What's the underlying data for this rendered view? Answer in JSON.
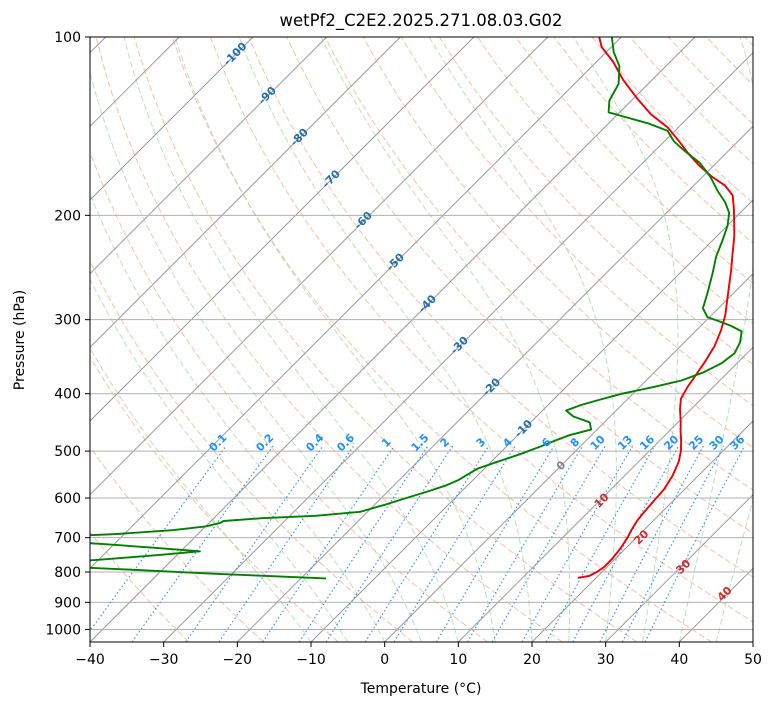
{
  "chart_data": {
    "type": "line",
    "title": "wetPf2_C2E2.2025.271.08.03.G02",
    "xlabel": "Temperature (°C)",
    "ylabel": "Pressure (hPa)",
    "xlim": [
      -40,
      50
    ],
    "ylim": [
      1050,
      100
    ],
    "y_scale": "log",
    "grid": true,
    "x_ticks": [
      -40,
      -30,
      -20,
      -10,
      0,
      10,
      20,
      30,
      40,
      50
    ],
    "y_ticks": [
      100,
      200,
      300,
      400,
      500,
      600,
      700,
      800,
      900,
      1000
    ],
    "skew": 45,
    "series": [
      {
        "color": "#ee0000",
        "points": [
          [
            17.5,
            818
          ],
          [
            18.8,
            812
          ],
          [
            19.3,
            800
          ],
          [
            19.6,
            785
          ],
          [
            19.6,
            760
          ],
          [
            19.3,
            730
          ],
          [
            18.8,
            700
          ],
          [
            18.3,
            680
          ],
          [
            17.8,
            655
          ],
          [
            17.6,
            635
          ],
          [
            17.4,
            610
          ],
          [
            17.2,
            580
          ],
          [
            16.5,
            550
          ],
          [
            15.4,
            520
          ],
          [
            14.3,
            500
          ],
          [
            12.9,
            480
          ],
          [
            11.5,
            462
          ],
          [
            10.2,
            445
          ],
          [
            8.5,
            425
          ],
          [
            7.2,
            408
          ],
          [
            6.5,
            390
          ],
          [
            6.0,
            372
          ],
          [
            5.4,
            352
          ],
          [
            4.6,
            332
          ],
          [
            3.3,
            312
          ],
          [
            1.9,
            295
          ],
          [
            0.2,
            279
          ],
          [
            -1.6,
            263
          ],
          [
            -3.5,
            247
          ],
          [
            -5.5,
            232
          ],
          [
            -7.6,
            217
          ],
          [
            -9.6,
            205
          ],
          [
            -11.4,
            195
          ],
          [
            -13.4,
            185
          ],
          [
            -15.8,
            178
          ],
          [
            -18.8,
            172
          ],
          [
            -21.9,
            165
          ],
          [
            -24.8,
            158
          ],
          [
            -28.0,
            150
          ],
          [
            -31.5,
            142
          ],
          [
            -35.5,
            135
          ],
          [
            -39.5,
            127
          ],
          [
            -44.0,
            118
          ],
          [
            -47.8,
            110
          ],
          [
            -51.3,
            104
          ],
          [
            -53.0,
            100
          ]
        ]
      },
      {
        "color": "#008000",
        "points": [
          [
            -16.6,
            820
          ],
          [
            -25.0,
            812
          ],
          [
            -33.0,
            805
          ],
          [
            -42.0,
            795
          ],
          [
            -52.0,
            785
          ],
          [
            -58.8,
            775
          ],
          [
            -50.0,
            763
          ],
          [
            -42.0,
            748
          ],
          [
            -37.4,
            738
          ],
          [
            -44.0,
            728
          ],
          [
            -52.0,
            717
          ],
          [
            -60.0,
            708
          ],
          [
            -62.0,
            700
          ],
          [
            -51.0,
            690
          ],
          [
            -44.0,
            680
          ],
          [
            -40.0,
            670
          ],
          [
            -38.5,
            661
          ],
          [
            -38.3,
            656
          ],
          [
            -33.5,
            649
          ],
          [
            -26.5,
            643
          ],
          [
            -21.0,
            633
          ],
          [
            -18.5,
            615
          ],
          [
            -16.6,
            600
          ],
          [
            -14.6,
            585
          ],
          [
            -13.0,
            572
          ],
          [
            -12.0,
            560
          ],
          [
            -11.5,
            548
          ],
          [
            -10.9,
            535
          ],
          [
            -9.0,
            520
          ],
          [
            -7.0,
            505
          ],
          [
            -5.5,
            492
          ],
          [
            -4.2,
            480
          ],
          [
            -3.0,
            470
          ],
          [
            -0.8,
            460
          ],
          [
            -2.0,
            447
          ],
          [
            -5.0,
            437
          ],
          [
            -6.8,
            427
          ],
          [
            -5.5,
            418
          ],
          [
            -3.8,
            410
          ],
          [
            -1.5,
            400
          ],
          [
            1.8,
            390
          ],
          [
            4.8,
            380
          ],
          [
            6.7,
            368
          ],
          [
            7.9,
            355
          ],
          [
            8.3,
            342
          ],
          [
            7.6,
            328
          ],
          [
            6.3,
            314
          ],
          [
            4.0,
            307
          ],
          [
            1.9,
            302
          ],
          [
            -0.3,
            297
          ],
          [
            -2.1,
            287
          ],
          [
            -3.6,
            270
          ],
          [
            -5.6,
            250
          ],
          [
            -7.3,
            235
          ],
          [
            -8.7,
            220
          ],
          [
            -10.0,
            208
          ],
          [
            -11.5,
            198
          ],
          [
            -13.5,
            190
          ],
          [
            -16.0,
            182
          ],
          [
            -19.0,
            172
          ],
          [
            -22.3,
            163
          ],
          [
            -25.8,
            156
          ],
          [
            -28.7,
            150
          ],
          [
            -31.0,
            144
          ],
          [
            -34.5,
            140
          ],
          [
            -38.0,
            137
          ],
          [
            -41.5,
            134
          ],
          [
            -43.0,
            128
          ],
          [
            -44.0,
            120
          ],
          [
            -46.3,
            112
          ],
          [
            -49.0,
            106
          ],
          [
            -51.3,
            100
          ]
        ]
      }
    ],
    "dry_adiabat_labels": [
      "-100",
      "-90",
      "-80",
      "-70",
      "-60",
      "-50",
      "-40",
      "-30",
      "-20",
      "-10"
    ],
    "mixing_ratio_labels": [
      "0.1",
      "0.2",
      "0.4",
      "0.6",
      "1",
      "1.5",
      "2",
      "3",
      "4",
      "6",
      "8",
      "10",
      "13",
      "16",
      "20",
      "25",
      "30",
      "36"
    ],
    "moist_adiabat_labels": [
      "0",
      "10",
      "20",
      "30",
      "40"
    ]
  },
  "colors": {
    "temperature": "#ee0000",
    "dewpoint": "#008000",
    "dry_adiabat_label": "#1f6fb0",
    "mixing_ratio_label": "#1e90ff",
    "moist_adiabat_label": "#d62728",
    "zero_label": "#808080"
  }
}
